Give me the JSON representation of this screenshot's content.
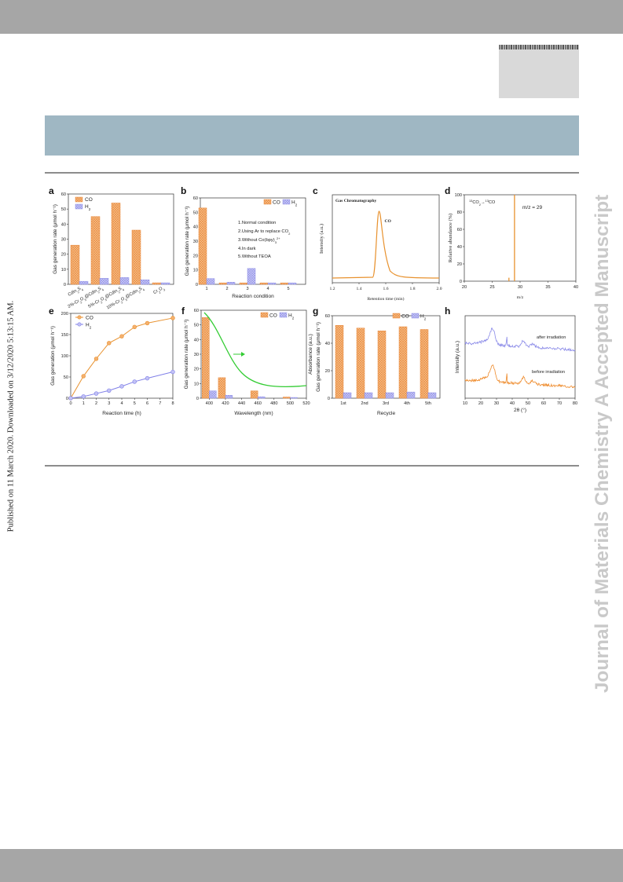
{
  "side_text": "Published on 11 March 2020. Downloaded on 3/12/2020 5:13:15 AM.",
  "watermark": "Journal of Materials Chemistry A Accepted Manuscript",
  "colors": {
    "co": "#f0a35c",
    "h2": "#a9a9f2",
    "line_co": "#e8922f",
    "line_h2": "#8080e8",
    "absorbance": "#33cc33",
    "gc_trace": "#e8922f"
  },
  "panel_labels": [
    "a",
    "b",
    "c",
    "d",
    "e",
    "f",
    "g",
    "h"
  ],
  "legend": {
    "co": "CO",
    "h2": "H",
    "h2_sub": "2"
  },
  "chart_data": [
    {
      "panel": "a",
      "type": "bar",
      "ylabel": "Gas generation rate (μmol h⁻¹)",
      "ylim": [
        0,
        60
      ],
      "yticks": [
        0,
        10,
        20,
        30,
        40,
        50,
        60
      ],
      "categories": [
        {
          "main": "CdIn",
          "sub": "2",
          "rest": "S",
          "sub2": "4"
        },
        {
          "main": "2%-Cr",
          "sub": "2",
          "rest": "O",
          "sub2": "3",
          "tail": "@CdIn",
          "sub3": "2",
          "tail2": "S",
          "sub4": "4"
        },
        {
          "main": "5%-Cr",
          "sub": "2",
          "rest": "O",
          "sub2": "3",
          "tail": "@CdIn",
          "sub3": "2",
          "tail2": "S",
          "sub4": "4"
        },
        {
          "main": "10%-Cr",
          "sub": "2",
          "rest": "O",
          "sub2": "3",
          "tail": "@CdIn",
          "sub3": "2",
          "tail2": "S",
          "sub4": "4"
        },
        {
          "main": "Cr",
          "sub": "2",
          "rest": "O",
          "sub2": "3"
        }
      ],
      "series": [
        {
          "name": "CO",
          "values": [
            26,
            45,
            54,
            36,
            1
          ]
        },
        {
          "name": "H2",
          "values": [
            2,
            4,
            4.5,
            3,
            1
          ]
        }
      ]
    },
    {
      "panel": "b",
      "type": "bar",
      "xlabel": "Reaction condition",
      "ylabel": "Gas generation rate (μmol h⁻¹)",
      "ylim": [
        0,
        60
      ],
      "yticks": [
        0,
        10,
        20,
        30,
        40,
        50,
        60
      ],
      "categories": [
        "1",
        "2",
        "3",
        "4",
        "5"
      ],
      "series": [
        {
          "name": "CO",
          "values": [
            53,
            1,
            1,
            1,
            1
          ]
        },
        {
          "name": "H2",
          "values": [
            4,
            1.5,
            11,
            1,
            1
          ]
        }
      ],
      "notes": [
        "1.Normal condition",
        "2.Using Ar to replace CO",
        "3.Without Co(bpy)",
        "4.In dark",
        "5.Without TEOA"
      ]
    },
    {
      "panel": "c",
      "type": "line",
      "title": "Gas Chromatography",
      "xlabel": "Retention time (min)",
      "ylabel": "Intensity (a.u.)",
      "xlim": [
        1.2,
        2.0
      ],
      "xticks": [
        "1.2",
        "1.4",
        "1.6",
        "1.8",
        "2.0"
      ],
      "peak_label": "CO",
      "peak_x": 1.55
    },
    {
      "panel": "d",
      "type": "bar",
      "title": "¹³CO₂→¹³CO",
      "annotation": "m/z = 29",
      "xlabel": "m/z",
      "ylabel": "Relative abundance (%)",
      "xlim": [
        20,
        40
      ],
      "xticks": [
        20,
        25,
        30,
        35,
        40
      ],
      "ylim": [
        0,
        100
      ],
      "yticks": [
        0,
        20,
        40,
        60,
        80,
        100
      ],
      "x": [
        28,
        29
      ],
      "values": [
        4,
        100
      ]
    },
    {
      "panel": "e",
      "type": "line",
      "xlabel": "Reaction time (h)",
      "ylabel": "Gas generation (μmol h⁻¹)",
      "xlim": [
        0,
        8
      ],
      "xticks": [
        0,
        1,
        2,
        3,
        4,
        5,
        6,
        7,
        8
      ],
      "ylim": [
        0,
        200
      ],
      "yticks": [
        0,
        50,
        100,
        150,
        200
      ],
      "x": [
        0,
        1,
        2,
        3,
        4,
        5,
        6,
        8
      ],
      "series": [
        {
          "name": "CO",
          "values": [
            0,
            52,
            93,
            130,
            146,
            168,
            177,
            189
          ]
        },
        {
          "name": "H2",
          "values": [
            0,
            4,
            11,
            18,
            28,
            39,
            47,
            62
          ]
        }
      ]
    },
    {
      "panel": "f",
      "type": "bar",
      "xlabel": "Wavelength (nm)",
      "ylabel": "Gas generation rate (μmol h⁻¹)",
      "y2label": "Absorbance (a.u.)",
      "xlim": [
        390,
        520
      ],
      "xticks": [
        400,
        420,
        440,
        460,
        480,
        500,
        520
      ],
      "ylim": [
        0,
        60
      ],
      "yticks": [
        0,
        10,
        20,
        30,
        40,
        50,
        60
      ],
      "categories": [
        400,
        420,
        460,
        500
      ],
      "series": [
        {
          "name": "CO",
          "values": [
            55,
            14,
            5,
            0.8
          ]
        },
        {
          "name": "H2",
          "values": [
            5,
            2,
            1,
            0.5
          ]
        }
      ]
    },
    {
      "panel": "g",
      "type": "bar",
      "xlabel": "Recycle",
      "ylabel": "Gas generation rate (μmol h⁻¹)",
      "ylim": [
        0,
        60
      ],
      "yticks": [
        0,
        20,
        40,
        60
      ],
      "categories": [
        "1st",
        "2nd",
        "3rd",
        "4th",
        "5th"
      ],
      "series": [
        {
          "name": "CO",
          "values": [
            53,
            51,
            49,
            52,
            50
          ]
        },
        {
          "name": "H2",
          "values": [
            4,
            4,
            4,
            4.5,
            4
          ]
        }
      ]
    },
    {
      "panel": "h",
      "type": "line",
      "xlabel": "2θ (°)",
      "ylabel": "Intensity (a.u.)",
      "xlim": [
        10,
        80
      ],
      "xticks": [
        10,
        20,
        30,
        40,
        50,
        60,
        70,
        80
      ],
      "series": [
        {
          "name": "after irradiation"
        },
        {
          "name": "before irradiation"
        }
      ]
    }
  ]
}
